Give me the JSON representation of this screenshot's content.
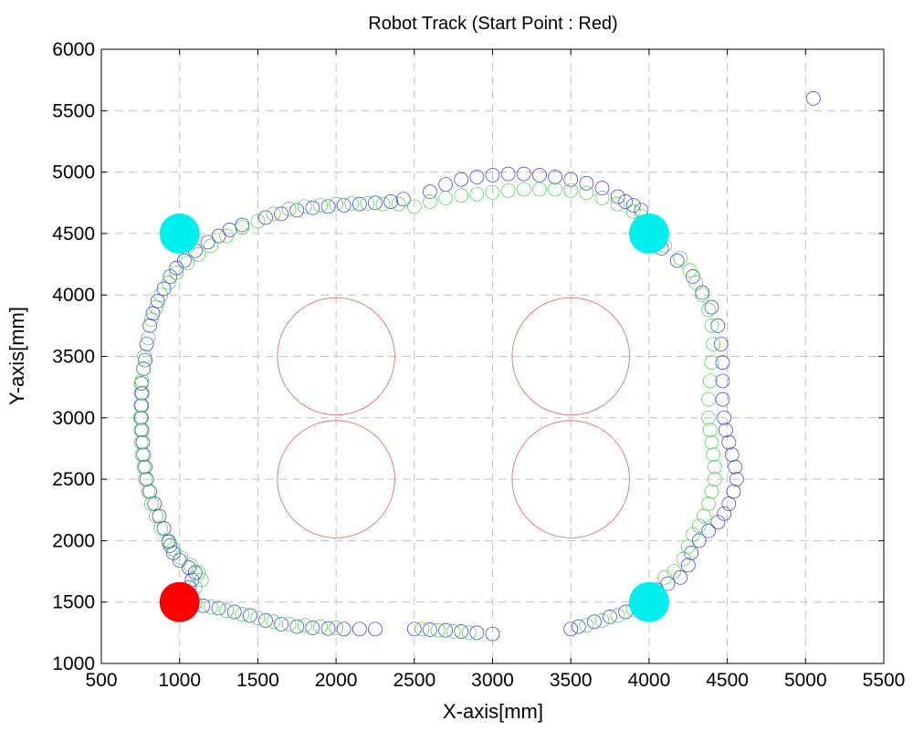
{
  "chart_data": {
    "type": "scatter",
    "title": "Robot Track (Start Point : Red)",
    "xlabel": "X-axis[mm]",
    "ylabel": "Y-axis[mm]",
    "xlim": [
      500,
      5500
    ],
    "ylim": [
      1000,
      6000
    ],
    "xticks": [
      500,
      1000,
      1500,
      2000,
      2500,
      3000,
      3500,
      4000,
      4500,
      5000,
      5500
    ],
    "yticks": [
      1000,
      1500,
      2000,
      2500,
      3000,
      3500,
      4000,
      4500,
      5000,
      5500,
      6000
    ],
    "grid": true,
    "grid_style": "dashed",
    "colors": {
      "track_a": "#3030d8",
      "track_b": "#40d040",
      "obstacle": "#e06060",
      "waypoint": "#00f0f0",
      "start": "#ff0000",
      "grid": "#c0c0c0"
    },
    "obstacles": [
      {
        "x": 2000,
        "y": 3500,
        "r": 375
      },
      {
        "x": 3500,
        "y": 3500,
        "r": 375
      },
      {
        "x": 2000,
        "y": 2500,
        "r": 375
      },
      {
        "x": 3500,
        "y": 2500,
        "r": 375
      }
    ],
    "waypoints": [
      {
        "x": 1000,
        "y": 4500
      },
      {
        "x": 4000,
        "y": 4500
      },
      {
        "x": 4000,
        "y": 1500
      }
    ],
    "start_point": {
      "x": 1000,
      "y": 1500
    },
    "series": [
      {
        "key": "track_a",
        "points": [
          [
            1000,
            1500
          ],
          [
            1030,
            1560
          ],
          [
            1060,
            1620
          ],
          [
            1080,
            1680
          ],
          [
            1100,
            1740
          ],
          [
            1060,
            1780
          ],
          [
            1000,
            1840
          ],
          [
            960,
            1900
          ],
          [
            940,
            1960
          ],
          [
            930,
            1990
          ],
          [
            900,
            2100
          ],
          [
            870,
            2200
          ],
          [
            840,
            2300
          ],
          [
            810,
            2400
          ],
          [
            790,
            2500
          ],
          [
            780,
            2600
          ],
          [
            770,
            2700
          ],
          [
            765,
            2800
          ],
          [
            760,
            2900
          ],
          [
            755,
            3000
          ],
          [
            758,
            3100
          ],
          [
            760,
            3200
          ],
          [
            756,
            3280
          ],
          [
            770,
            3400
          ],
          [
            780,
            3470
          ],
          [
            790,
            3600
          ],
          [
            810,
            3750
          ],
          [
            830,
            3850
          ],
          [
            860,
            3950
          ],
          [
            900,
            4050
          ],
          [
            940,
            4150
          ],
          [
            980,
            4220
          ],
          [
            1030,
            4280
          ],
          [
            1100,
            4360
          ],
          [
            1180,
            4430
          ],
          [
            1250,
            4480
          ],
          [
            1320,
            4530
          ],
          [
            1400,
            4570
          ],
          [
            1550,
            4630
          ],
          [
            1650,
            4660
          ],
          [
            1750,
            4690
          ],
          [
            1850,
            4710
          ],
          [
            1950,
            4720
          ],
          [
            2050,
            4730
          ],
          [
            2150,
            4740
          ],
          [
            2250,
            4750
          ],
          [
            2350,
            4760
          ],
          [
            2430,
            4780
          ],
          [
            2600,
            4840
          ],
          [
            2700,
            4900
          ],
          [
            2800,
            4940
          ],
          [
            2900,
            4960
          ],
          [
            3000,
            4975
          ],
          [
            3100,
            4985
          ],
          [
            3200,
            4985
          ],
          [
            3300,
            4975
          ],
          [
            3400,
            4960
          ],
          [
            3500,
            4940
          ],
          [
            3600,
            4910
          ],
          [
            3700,
            4870
          ],
          [
            3800,
            4800
          ],
          [
            3850,
            4760
          ],
          [
            3900,
            4730
          ],
          [
            3950,
            4690
          ],
          [
            4080,
            4380
          ],
          [
            4180,
            4280
          ],
          [
            4280,
            4150
          ],
          [
            4340,
            4020
          ],
          [
            4400,
            3900
          ],
          [
            4440,
            3750
          ],
          [
            4460,
            3600
          ],
          [
            4470,
            3450
          ],
          [
            4470,
            3300
          ],
          [
            4470,
            3150
          ],
          [
            4480,
            3000
          ],
          [
            4490,
            2900
          ],
          [
            4510,
            2800
          ],
          [
            4530,
            2700
          ],
          [
            4550,
            2600
          ],
          [
            4560,
            2500
          ],
          [
            4540,
            2400
          ],
          [
            4510,
            2300
          ],
          [
            4480,
            2220
          ],
          [
            4440,
            2150
          ],
          [
            4380,
            2080
          ],
          [
            4320,
            2000
          ],
          [
            4270,
            1900
          ],
          [
            4250,
            1800
          ],
          [
            4200,
            1700
          ],
          [
            4120,
            1650
          ],
          [
            4050,
            1600
          ],
          [
            3950,
            1470
          ],
          [
            3850,
            1420
          ],
          [
            3750,
            1380
          ],
          [
            3650,
            1340
          ],
          [
            3550,
            1300
          ],
          [
            3500,
            1280
          ],
          [
            3000,
            1240
          ],
          [
            2900,
            1250
          ],
          [
            2800,
            1260
          ],
          [
            2700,
            1270
          ],
          [
            2600,
            1275
          ],
          [
            2500,
            1280
          ],
          [
            2250,
            1280
          ],
          [
            2150,
            1280
          ],
          [
            2050,
            1280
          ],
          [
            1950,
            1285
          ],
          [
            1850,
            1290
          ],
          [
            1750,
            1300
          ],
          [
            1650,
            1320
          ],
          [
            1550,
            1350
          ],
          [
            1450,
            1390
          ],
          [
            1350,
            1420
          ],
          [
            1250,
            1450
          ],
          [
            1150,
            1470
          ],
          [
            5050,
            5600
          ]
        ]
      },
      {
        "key": "track_b",
        "points": [
          [
            1020,
            1520
          ],
          [
            1060,
            1560
          ],
          [
            1100,
            1620
          ],
          [
            1140,
            1680
          ],
          [
            1120,
            1740
          ],
          [
            1070,
            1800
          ],
          [
            1010,
            1860
          ],
          [
            960,
            1930
          ],
          [
            930,
            2000
          ],
          [
            880,
            2100
          ],
          [
            850,
            2200
          ],
          [
            820,
            2300
          ],
          [
            800,
            2400
          ],
          [
            780,
            2500
          ],
          [
            770,
            2600
          ],
          [
            760,
            2700
          ],
          [
            755,
            2800
          ],
          [
            752,
            2900
          ],
          [
            750,
            3000
          ],
          [
            752,
            3100
          ],
          [
            755,
            3200
          ],
          [
            760,
            3300
          ],
          [
            768,
            3400
          ],
          [
            775,
            3500
          ],
          [
            800,
            3650
          ],
          [
            820,
            3800
          ],
          [
            850,
            3900
          ],
          [
            880,
            4000
          ],
          [
            930,
            4100
          ],
          [
            980,
            4180
          ],
          [
            1050,
            4260
          ],
          [
            1120,
            4330
          ],
          [
            1200,
            4400
          ],
          [
            1300,
            4480
          ],
          [
            1400,
            4550
          ],
          [
            1500,
            4600
          ],
          [
            1600,
            4660
          ],
          [
            1700,
            4700
          ],
          [
            1800,
            4720
          ],
          [
            1900,
            4730
          ],
          [
            2000,
            4740
          ],
          [
            2100,
            4745
          ],
          [
            2200,
            4745
          ],
          [
            2300,
            4740
          ],
          [
            2400,
            4740
          ],
          [
            2500,
            4720
          ],
          [
            2600,
            4760
          ],
          [
            2700,
            4790
          ],
          [
            2800,
            4810
          ],
          [
            2900,
            4820
          ],
          [
            3000,
            4835
          ],
          [
            3100,
            4850
          ],
          [
            3200,
            4860
          ],
          [
            3300,
            4860
          ],
          [
            3400,
            4860
          ],
          [
            3500,
            4850
          ],
          [
            3600,
            4830
          ],
          [
            3700,
            4790
          ],
          [
            3800,
            4740
          ],
          [
            3900,
            4680
          ],
          [
            3950,
            4640
          ],
          [
            4100,
            4400
          ],
          [
            4200,
            4300
          ],
          [
            4260,
            4200
          ],
          [
            4300,
            4100
          ],
          [
            4340,
            4000
          ],
          [
            4380,
            3880
          ],
          [
            4400,
            3750
          ],
          [
            4410,
            3600
          ],
          [
            4400,
            3450
          ],
          [
            4390,
            3300
          ],
          [
            4380,
            3150
          ],
          [
            4380,
            3000
          ],
          [
            4390,
            2900
          ],
          [
            4400,
            2800
          ],
          [
            4410,
            2700
          ],
          [
            4420,
            2600
          ],
          [
            4420,
            2500
          ],
          [
            4400,
            2400
          ],
          [
            4380,
            2300
          ],
          [
            4350,
            2200
          ],
          [
            4320,
            2120
          ],
          [
            4280,
            2050
          ],
          [
            4250,
            1950
          ],
          [
            4220,
            1850
          ],
          [
            4160,
            1750
          ],
          [
            4100,
            1700
          ],
          [
            3900,
            1440
          ],
          [
            3800,
            1390
          ],
          [
            3700,
            1350
          ],
          [
            3600,
            1310
          ],
          [
            2850,
            1250
          ],
          [
            2750,
            1260
          ],
          [
            2650,
            1270
          ],
          [
            2550,
            1280
          ],
          [
            2000,
            1290
          ],
          [
            1900,
            1300
          ],
          [
            1800,
            1310
          ],
          [
            1700,
            1320
          ],
          [
            1600,
            1340
          ],
          [
            1500,
            1370
          ],
          [
            1400,
            1400
          ],
          [
            1300,
            1430
          ],
          [
            1200,
            1460
          ],
          [
            1100,
            1490
          ]
        ]
      }
    ]
  }
}
